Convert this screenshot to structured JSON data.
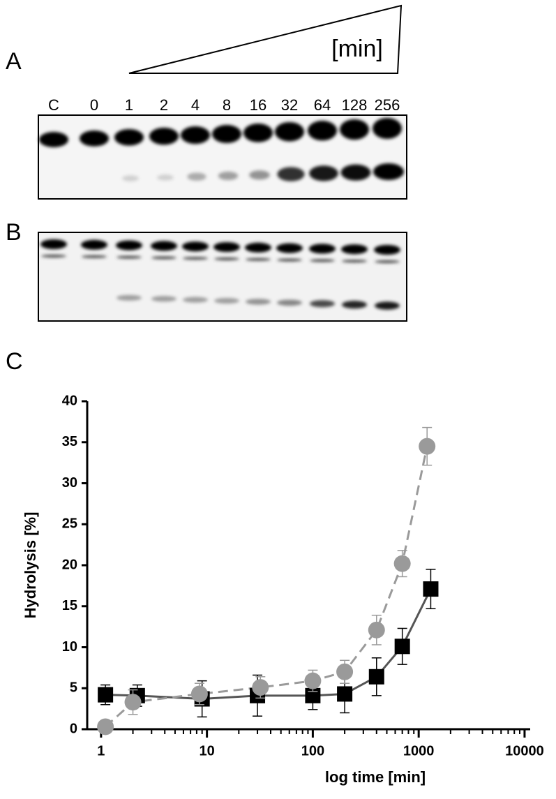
{
  "panels": {
    "a": "A",
    "b": "B",
    "c": "C"
  },
  "gel_unit": "[min]",
  "gel_lanes": [
    "C",
    "0",
    "1",
    "2",
    "4",
    "8",
    "16",
    "32",
    "64",
    "128",
    "256"
  ],
  "chart_data": {
    "type": "line",
    "ylabel": "Hydrolysis [%]",
    "xlabel": "log time [min]",
    "log_x": true,
    "xlim": [
      0.74,
      11300
    ],
    "xticks": [
      1,
      10,
      100,
      1000,
      10000
    ],
    "ylim": [
      0,
      40
    ],
    "yticks": [
      0,
      5,
      10,
      15,
      20,
      25,
      30,
      35,
      40
    ],
    "series": [
      {
        "color": "#000000",
        "line_color": "#555555",
        "marker": "square",
        "dashed": false,
        "x": [
          1.1,
          2.2,
          9,
          30,
          100,
          200,
          400,
          700,
          1300
        ],
        "values": [
          4.2,
          4.1,
          3.7,
          4.1,
          4.1,
          4.3,
          6.4,
          10.1,
          17.1
        ],
        "errors": [
          1.2,
          1.3,
          2.2,
          2.5,
          1.7,
          2.3,
          2.3,
          2.2,
          2.4
        ]
      },
      {
        "color": "#9a9a9a",
        "line_color": "#9a9a9a",
        "marker": "circle",
        "dashed": true,
        "x": [
          1.1,
          2,
          8.5,
          32,
          100,
          200,
          400,
          700,
          1200
        ],
        "values": [
          0.3,
          3.3,
          4.3,
          5.1,
          5.9,
          7.0,
          12.1,
          20.2,
          34.5
        ],
        "errors": [
          0,
          1.5,
          1.3,
          1.3,
          1.3,
          1.4,
          1.8,
          1.6,
          2.3
        ]
      }
    ]
  }
}
